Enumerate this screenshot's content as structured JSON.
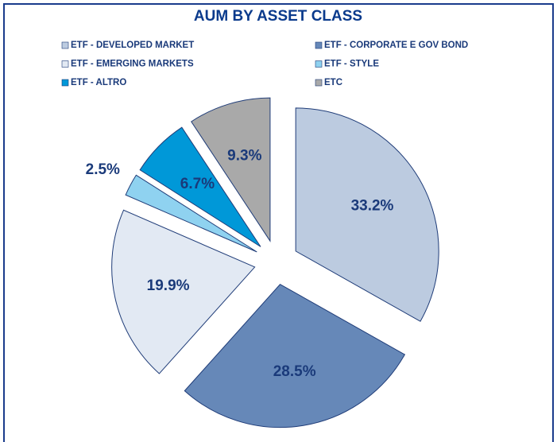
{
  "chart_data": {
    "type": "pie",
    "title": "AUM BY ASSET CLASS",
    "categories": [
      "ETF - DEVELOPED MARKET",
      "ETF - CORPORATE E GOV BOND",
      "ETF - EMERGING MARKETS",
      "ETF - STYLE",
      "ETF - ALTRO",
      "ETC"
    ],
    "values": [
      33.2,
      28.5,
      19.9,
      2.5,
      6.7,
      9.3
    ],
    "value_labels": [
      "33.2%",
      "28.5%",
      "19.9%",
      "2.5%",
      "6.7%",
      "9.3%"
    ],
    "colors": [
      "#bccbe0",
      "#6688b8",
      "#e2e9f3",
      "#8fd2f0",
      "#0098d8",
      "#a9a9a9"
    ]
  }
}
